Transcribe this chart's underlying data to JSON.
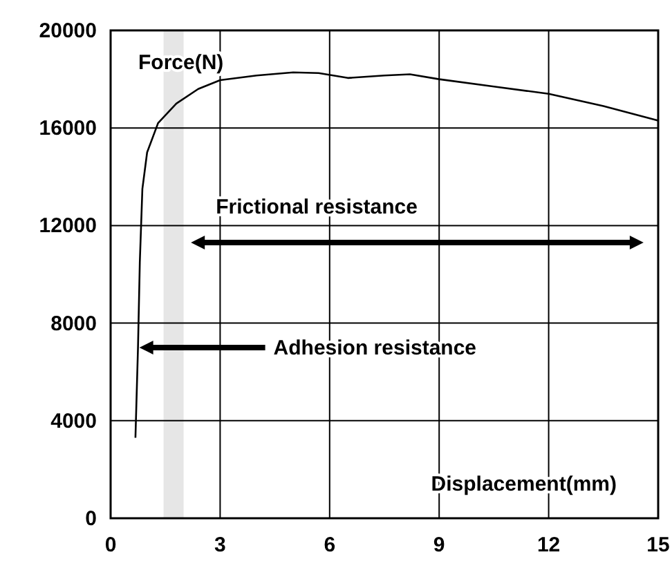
{
  "chart_data": {
    "type": "line",
    "xlabel": "Displacement(mm)",
    "ylabel": "Force(N)",
    "xlim": [
      0,
      15
    ],
    "xticks": [
      0,
      3,
      6,
      9,
      12,
      15
    ],
    "ylim": [
      0,
      20000
    ],
    "yticks": [
      0,
      4000,
      8000,
      12000,
      16000,
      20000
    ],
    "grid": true,
    "marker": "none",
    "line_style": "solid",
    "series": [
      {
        "color": "#000000",
        "x": [
          0.68,
          0.75,
          0.8,
          0.87,
          1.0,
          1.3,
          1.8,
          2.4,
          3,
          4,
          5,
          5.7,
          6.5,
          7.5,
          8.2,
          9,
          10.5,
          12,
          13.5,
          15
        ],
        "values": [
          3300,
          7000,
          10500,
          13500,
          15000,
          16200,
          17000,
          17600,
          17960,
          18150,
          18280,
          18250,
          18050,
          18150,
          18200,
          18000,
          17700,
          17400,
          16900,
          16300
        ]
      }
    ],
    "bands": [
      {
        "axis": "x",
        "from": 1.45,
        "to": 2.0,
        "color": "#e6e6e6"
      }
    ],
    "annotations": [
      "Frictional resistance",
      {
        "text": "Adhesion resistance",
        "x": 0.75,
        "y": 7000
      }
    ]
  }
}
